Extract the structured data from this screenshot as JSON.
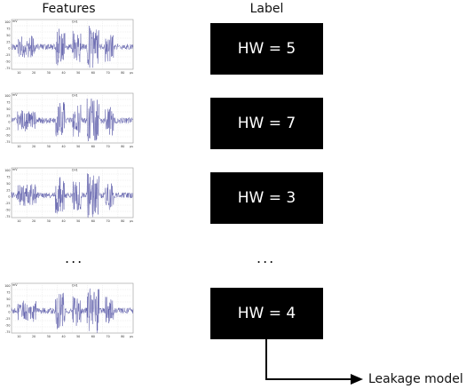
{
  "headings": {
    "features": "Features",
    "label": "Label"
  },
  "trace_plot": {
    "y_ticks": [
      "100",
      "75",
      "50",
      "25",
      "0",
      "-25",
      "-50",
      "-75"
    ],
    "x_ticks": [
      "10",
      "20",
      "30",
      "40",
      "50",
      "60",
      "70",
      "80"
    ],
    "y_unit": "mV",
    "x_unit": "µs",
    "plot_title": "CH1",
    "line_color": "#5a5aa8"
  },
  "rows": [
    {
      "label": "HW = 5"
    },
    {
      "label": "HW = 7"
    },
    {
      "label": "HW = 3"
    },
    {
      "label": "HW = 4"
    }
  ],
  "ellipsis": {
    "left": "...",
    "right": "..."
  },
  "output": {
    "label": "Leakage model"
  }
}
